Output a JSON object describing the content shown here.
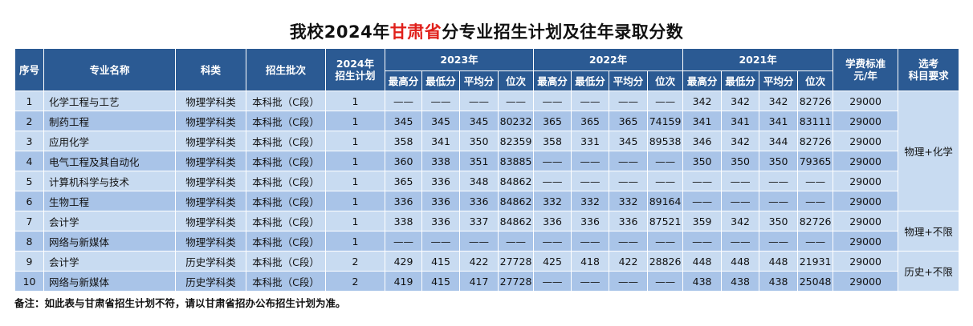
{
  "header": {
    "title": {
      "prefix": "我校2024年",
      "highlight": "甘肃省",
      "suffix": "分专业招生计划及往年录取分数"
    }
  },
  "table": {
    "headers": {
      "index": "序号",
      "major": "专业名称",
      "category": "科类",
      "batch": "招生批次",
      "plan_2024": [
        "2024年",
        "招生计划"
      ],
      "years": [
        "2023年",
        "2022年",
        "2021年"
      ],
      "metrics": [
        "最高分",
        "最低分",
        "平均分",
        "位次"
      ],
      "tuition": [
        "学费标准",
        "元/年"
      ],
      "subjects": [
        "选考",
        "科目要求"
      ]
    },
    "rows": [
      [
        1,
        "化学工程与工艺",
        "物理学科类",
        "本科批（C段）",
        1,
        "——",
        "——",
        "——",
        "——",
        "——",
        "——",
        "——",
        "——",
        342,
        342,
        342,
        82726,
        29000
      ],
      [
        2,
        "制药工程",
        "物理学科类",
        "本科批（C段）",
        1,
        345,
        345,
        345,
        80232,
        365,
        365,
        365,
        74159,
        341,
        341,
        341,
        83111,
        29000
      ],
      [
        3,
        "应用化学",
        "物理学科类",
        "本科批（C段）",
        1,
        358,
        341,
        350,
        82359,
        358,
        331,
        345,
        89538,
        346,
        342,
        344,
        82726,
        29000
      ],
      [
        4,
        "电气工程及其自动化",
        "物理学科类",
        "本科批（C段）",
        1,
        360,
        338,
        351,
        83885,
        "——",
        "——",
        "——",
        "——",
        350,
        350,
        350,
        79365,
        29000
      ],
      [
        5,
        "计算机科学与技术",
        "物理学科类",
        "本科批（C段）",
        1,
        365,
        336,
        348,
        84862,
        "——",
        "——",
        "——",
        "——",
        "——",
        "——",
        "——",
        "——",
        29000
      ],
      [
        6,
        "生物工程",
        "物理学科类",
        "本科批（C段）",
        1,
        336,
        336,
        336,
        84862,
        332,
        332,
        332,
        89164,
        "——",
        "——",
        "——",
        "——",
        29000
      ],
      [
        7,
        "会计学",
        "物理学科类",
        "本科批（C段）",
        1,
        338,
        336,
        337,
        84862,
        336,
        336,
        336,
        87521,
        359,
        342,
        350,
        82726,
        29000
      ],
      [
        8,
        "网络与新媒体",
        "物理学科类",
        "本科批（C段）",
        1,
        "——",
        "——",
        "——",
        "——",
        "——",
        "——",
        "——",
        "——",
        "——",
        "——",
        "——",
        "——",
        29000
      ],
      [
        9,
        "会计学",
        "历史学科类",
        "本科批（C段）",
        2,
        429,
        415,
        422,
        27728,
        425,
        418,
        422,
        28826,
        448,
        448,
        448,
        21931,
        29000
      ],
      [
        10,
        "网络与新媒体",
        "历史学科类",
        "本科批（C段）",
        2,
        419,
        415,
        417,
        27728,
        "——",
        "——",
        "——",
        "——",
        438,
        438,
        438,
        25048,
        29000
      ]
    ],
    "subject_requirements": [
      "物理+化学",
      "物理+不限",
      "历史+不限"
    ]
  },
  "footer": {
    "note": "备注：如此表与甘肃省招生计划不符，请以甘肃省招办公布招生计划为准。"
  }
}
